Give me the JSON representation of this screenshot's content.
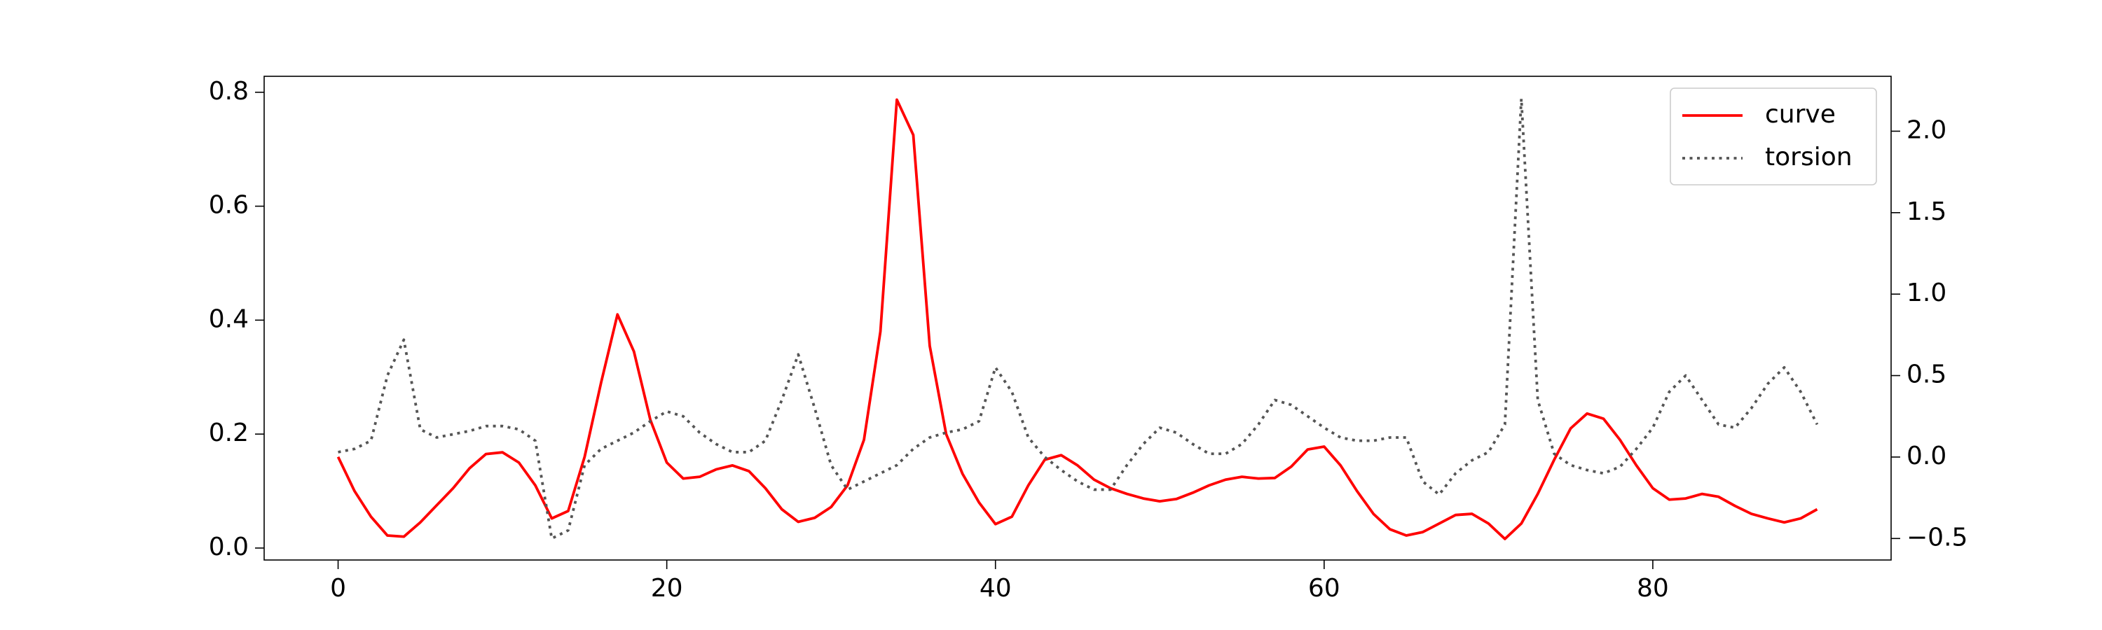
{
  "chart_data": {
    "type": "line",
    "x": [
      0,
      1,
      2,
      3,
      4,
      5,
      6,
      7,
      8,
      9,
      10,
      11,
      12,
      13,
      14,
      15,
      16,
      17,
      18,
      19,
      20,
      21,
      22,
      23,
      24,
      25,
      26,
      27,
      28,
      29,
      30,
      31,
      32,
      33,
      34,
      35,
      36,
      37,
      38,
      39,
      40,
      41,
      42,
      43,
      44,
      45,
      46,
      47,
      48,
      49,
      50,
      51,
      52,
      53,
      54,
      55,
      56,
      57,
      58,
      59,
      60,
      61,
      62,
      63,
      64,
      65,
      66,
      67,
      68,
      69,
      70,
      71,
      72,
      73,
      74,
      75,
      76,
      77,
      78,
      79,
      80,
      81,
      82,
      83,
      84,
      85,
      86,
      87,
      88,
      89,
      90
    ],
    "series": [
      {
        "name": "curve",
        "color": "#ff0000",
        "style": "solid",
        "axis": "y",
        "values": [
          0.16,
          0.1,
          0.055,
          0.022,
          0.02,
          0.045,
          0.075,
          0.105,
          0.14,
          0.165,
          0.168,
          0.15,
          0.11,
          0.052,
          0.065,
          0.16,
          0.29,
          0.41,
          0.345,
          0.225,
          0.15,
          0.122,
          0.125,
          0.138,
          0.145,
          0.135,
          0.105,
          0.068,
          0.046,
          0.053,
          0.072,
          0.11,
          0.19,
          0.38,
          0.787,
          0.725,
          0.355,
          0.2,
          0.13,
          0.08,
          0.042,
          0.055,
          0.11,
          0.155,
          0.163,
          0.145,
          0.12,
          0.105,
          0.095,
          0.087,
          0.082,
          0.086,
          0.097,
          0.11,
          0.12,
          0.125,
          0.122,
          0.123,
          0.143,
          0.173,
          0.178,
          0.145,
          0.1,
          0.06,
          0.033,
          0.022,
          0.028,
          0.043,
          0.058,
          0.06,
          0.043,
          0.016,
          0.043,
          0.095,
          0.155,
          0.21,
          0.236,
          0.227,
          0.19,
          0.145,
          0.105,
          0.085,
          0.087,
          0.095,
          0.09,
          0.074,
          0.06,
          0.052,
          0.045,
          0.052,
          0.068
        ]
      },
      {
        "name": "torsion",
        "color": "#555555",
        "style": "dotted",
        "axis": "y2",
        "values": [
          0.03,
          0.05,
          0.1,
          0.5,
          0.72,
          0.17,
          0.12,
          0.14,
          0.16,
          0.19,
          0.19,
          0.17,
          0.1,
          -0.5,
          -0.45,
          -0.05,
          0.05,
          0.1,
          0.15,
          0.22,
          0.28,
          0.25,
          0.15,
          0.08,
          0.03,
          0.03,
          0.1,
          0.35,
          0.63,
          0.3,
          -0.05,
          -0.2,
          -0.15,
          -0.1,
          -0.05,
          0.05,
          0.12,
          0.15,
          0.17,
          0.22,
          0.55,
          0.4,
          0.12,
          0.0,
          -0.08,
          -0.15,
          -0.2,
          -0.2,
          -0.05,
          0.08,
          0.18,
          0.15,
          0.08,
          0.02,
          0.02,
          0.08,
          0.2,
          0.35,
          0.32,
          0.25,
          0.18,
          0.12,
          0.1,
          0.1,
          0.12,
          0.12,
          -0.15,
          -0.23,
          -0.1,
          -0.02,
          0.03,
          0.2,
          2.2,
          0.35,
          0.02,
          -0.05,
          -0.08,
          -0.1,
          -0.06,
          0.05,
          0.18,
          0.4,
          0.5,
          0.35,
          0.2,
          0.18,
          0.3,
          0.45,
          0.55,
          0.4,
          0.2
        ]
      }
    ],
    "xlim": [
      -4.5,
      94.5
    ],
    "xticks": [
      0,
      20,
      40,
      60,
      80
    ],
    "ylim": [
      -0.021,
      0.828
    ],
    "yticks": [
      {
        "value": 0,
        "label": "0.0"
      },
      0.2,
      0.4,
      0.6,
      0.8
    ],
    "y2lim": [
      -0.632,
      2.337
    ],
    "y2ticks": [
      {
        "value": -0.5,
        "label": "−0.5"
      },
      {
        "value": 0,
        "label": "0.0"
      },
      0.5,
      {
        "value": 1,
        "label": "1.0"
      },
      1.5,
      {
        "value": 2,
        "label": "2.0"
      }
    ],
    "legend": "upper right",
    "grid": false
  }
}
